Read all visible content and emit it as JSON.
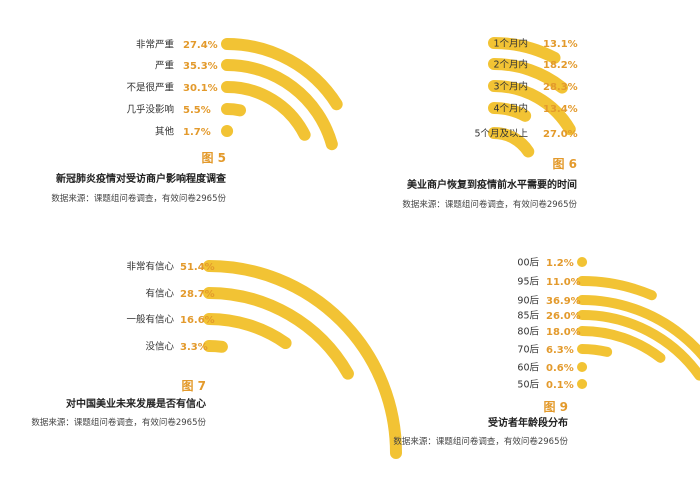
{
  "colors": {
    "arc": "#f2c334",
    "value": "#e39a2c",
    "text": "#333333"
  },
  "chart_data": [
    {
      "type": "radial-arc",
      "figure_label": "图 5",
      "title": "新冠肺炎疫情对受访商户影响程度调查",
      "source": "数据来源：课题组问卷调查，有效问卷2965份",
      "categories": [
        "非常严重",
        "严重",
        "不是很严重",
        "几乎没影响",
        "其他"
      ],
      "values": [
        27.4,
        35.3,
        30.1,
        5.5,
        1.7
      ],
      "value_labels": [
        "27.4%",
        "35.3%",
        "30.1%",
        "5.5%",
        "1.7%"
      ]
    },
    {
      "type": "radial-arc",
      "figure_label": "图 6",
      "title": "美业商户恢复到疫情前水平需要的时间",
      "source": "数据来源：课题组问卷调查，有效问卷2965份",
      "categories": [
        "1个月内",
        "2个月内",
        "3个月内",
        "4个月内",
        "5个月及以上"
      ],
      "values": [
        13.1,
        18.2,
        28.3,
        13.4,
        27.0
      ],
      "value_labels": [
        "13.1%",
        "18.2%",
        "28.3%",
        "13.4%",
        "27.0%"
      ]
    },
    {
      "type": "radial-arc",
      "figure_label": "图 7",
      "title": "对中国美业未来发展是否有信心",
      "source": "数据来源：课题组问卷调查，有效问卷2965份",
      "categories": [
        "非常有信心",
        "有信心",
        "一般有信心",
        "没信心"
      ],
      "values": [
        51.4,
        28.7,
        16.6,
        3.3
      ],
      "value_labels": [
        "51.4%",
        "28.7%",
        "16.6%",
        "3.3%"
      ]
    },
    {
      "type": "radial-arc",
      "figure_label": "图 9",
      "title": "受访者年龄段分布",
      "source": "数据来源：课题组问卷调查，有效问卷2965份",
      "categories": [
        "00后",
        "95后",
        "90后",
        "85后",
        "80后",
        "70后",
        "60后",
        "50后"
      ],
      "values": [
        1.2,
        11.0,
        36.9,
        26.0,
        18.0,
        6.3,
        0.6,
        0.1
      ],
      "value_labels": [
        "1.2%",
        "11.0%",
        "36.9%",
        "26.0%",
        "18.0%",
        "6.3%",
        "0.6%",
        "0.1%"
      ]
    }
  ]
}
